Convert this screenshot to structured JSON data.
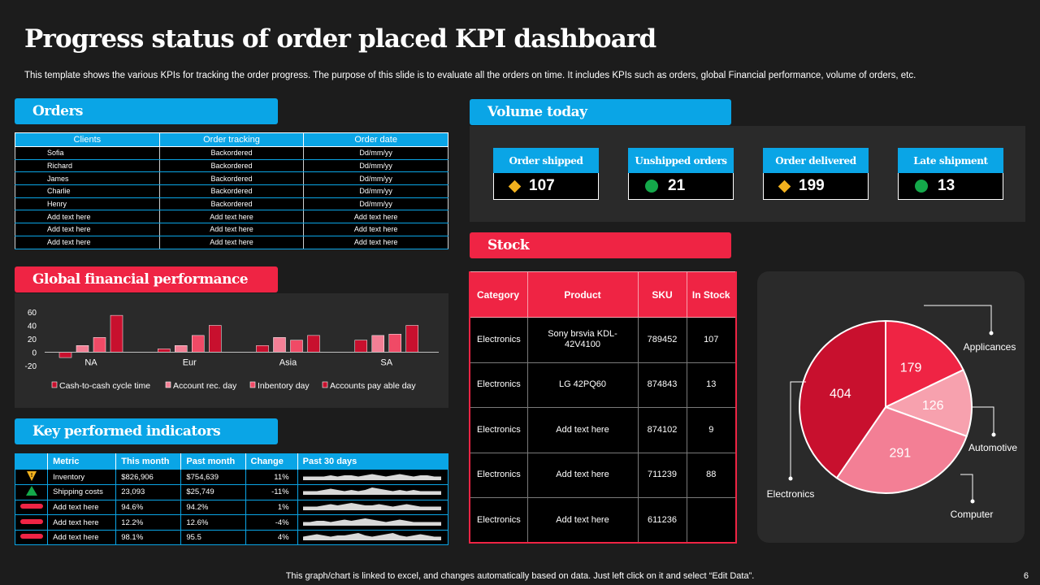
{
  "title": "Progress status of order placed KPI dashboard",
  "subtitle": "This template shows the various KPIs for tracking the order progress. The purpose of this slide is to evaluate all the orders on time. It includes KPIs such as orders, global Financial performance, volume of orders, etc.",
  "orders": {
    "header": "Orders",
    "columns": [
      "Clients",
      "Order tracking",
      "Order date"
    ],
    "rows": [
      [
        "Sofia",
        "Backordered",
        "Dd/mm/yy"
      ],
      [
        "Richard",
        "Backordered",
        "Dd/mm/yy"
      ],
      [
        "James",
        "Backordered",
        "Dd/mm/yy"
      ],
      [
        "Charlie",
        "Backordered",
        "Dd/mm/yy"
      ],
      [
        "Henry",
        "Backordered",
        "Dd/mm/yy"
      ],
      [
        "Add text here",
        "Add text here",
        "Add text here"
      ],
      [
        "Add text here",
        "Add text here",
        "Add text here"
      ],
      [
        "Add text here",
        "Add text here",
        "Add text here"
      ]
    ]
  },
  "global_financial": {
    "header": "Global financial performance"
  },
  "kpi": {
    "header": "Key performed indicators",
    "columns": [
      "",
      "Metric",
      "This month",
      "Past month",
      "Change",
      "Past 30 days"
    ],
    "rows": [
      {
        "indicator": "down-triangle-icon",
        "metric": "Inventory",
        "this_month": "$826,906",
        "past_month": "$754,639",
        "change": "11%"
      },
      {
        "indicator": "up-triangle-icon",
        "metric": "Shipping costs",
        "this_month": "23,093",
        "past_month": "$25,749",
        "change": "-11%"
      },
      {
        "indicator": "red-bar-icon",
        "metric": "Add text here",
        "this_month": "94.6%",
        "past_month": "94.2%",
        "change": "1%"
      },
      {
        "indicator": "red-bar-icon",
        "metric": "Add text here",
        "this_month": "12.2%",
        "past_month": "12.6%",
        "change": "-4%"
      },
      {
        "indicator": "red-bar-icon",
        "metric": "Add text here",
        "this_month": "98.1%",
        "past_month": "95.5",
        "change": "4%"
      }
    ]
  },
  "volume": {
    "header": "Volume today",
    "cards": [
      {
        "label": "Order shipped",
        "value": "107",
        "icon": "yellow-diamond-icon"
      },
      {
        "label": "Unshipped orders",
        "value": "21",
        "icon": "green-dot-icon"
      },
      {
        "label": "Order delivered",
        "value": "199",
        "icon": "yellow-diamond-icon"
      },
      {
        "label": "Late shipment",
        "value": "13",
        "icon": "green-dot-icon"
      }
    ]
  },
  "stock": {
    "header": "Stock",
    "columns": [
      "Category",
      "Product",
      "SKU",
      "In Stock"
    ],
    "rows": [
      [
        "Electronics",
        "Sony brsvia KDL-42V4100",
        "789452",
        "107"
      ],
      [
        "Electronics",
        "LG 42PQ60",
        "874843",
        "13"
      ],
      [
        "Electronics",
        "Add text here",
        "874102",
        "9"
      ],
      [
        "Electronics",
        "Add text here",
        "711239",
        "88"
      ],
      [
        "Electronics",
        "Add text here",
        "611236",
        ""
      ]
    ]
  },
  "footer": "This graph/chart is linked to excel,  and changes automatically based on data. Just left click on it and select “Edit Data”.",
  "page_number": "6",
  "colors": {
    "accent_blue": "#0aa5e6",
    "accent_red": "#ef2444",
    "background": "#1c1c1c",
    "panel": "#2a2a2a"
  },
  "chart_data": [
    {
      "type": "bar",
      "categories": [
        "NA",
        "Eur",
        "Asia",
        "SA"
      ],
      "ylim": [
        -20,
        60
      ],
      "yticks": [
        -20,
        0,
        20,
        40,
        60
      ],
      "legend_position": "bottom",
      "series": [
        {
          "name": "Cash-to-cash cycle time",
          "values": [
            -8,
            5,
            10,
            18
          ],
          "color": "#c8102e"
        },
        {
          "name": "Account rec. day",
          "values": [
            10,
            10,
            22,
            25
          ],
          "color": "#f37f95"
        },
        {
          "name": "Inbentory day",
          "values": [
            22,
            25,
            18,
            27
          ],
          "color": "#f04a66"
        },
        {
          "name": "Accounts pay able day",
          "values": [
            55,
            40,
            25,
            40
          ],
          "color": "#c8102e"
        }
      ]
    },
    {
      "type": "pie",
      "categories": [
        "Applicances",
        "Automotive",
        "Computer",
        "Electronics"
      ],
      "values": [
        179,
        126,
        291,
        404
      ],
      "colors": [
        "#ef2444",
        "#f7a1ae",
        "#f37f95",
        "#c8102e"
      ],
      "legend_position": "callouts"
    }
  ]
}
